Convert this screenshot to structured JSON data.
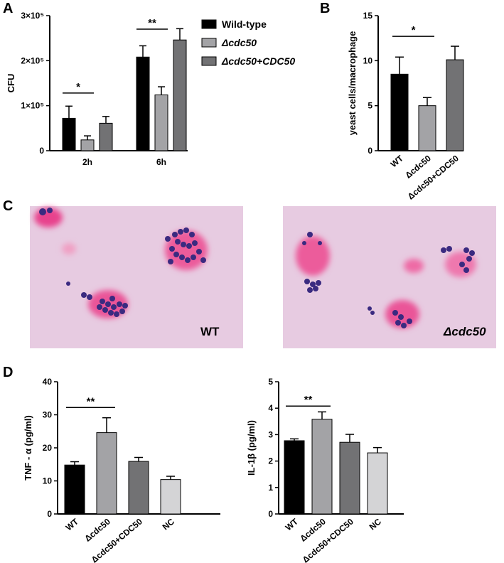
{
  "panels": {
    "A": "A",
    "B": "B",
    "C": "C",
    "D": "D"
  },
  "colors": {
    "wt": "#000000",
    "mut": "#a3a3a6",
    "comp": "#727274",
    "nc": "#d4d4d6",
    "micro_bg": "#e6c9e0",
    "cell": "#e8438d",
    "yeast": "#3a2a80"
  },
  "panelC": {
    "label_wt": "WT",
    "label_mut": "Δcdc50"
  },
  "chart_data": [
    {
      "type": "bar",
      "id": "A",
      "ylabel": "CFU",
      "categories": [
        "2h",
        "6h"
      ],
      "series": [
        {
          "name": "Wild-type",
          "values": [
            72000,
            208000
          ],
          "errors": [
            27000,
            25000
          ]
        },
        {
          "name": "Δcdc50",
          "values": [
            24000,
            124000
          ],
          "errors": [
            9000,
            18000
          ]
        },
        {
          "name": "Δcdc50+CDC50",
          "values": [
            61000,
            246000
          ],
          "errors": [
            15000,
            25000
          ]
        }
      ],
      "ylim": [
        0,
        300000
      ],
      "yticks": [
        0,
        100000,
        200000,
        300000
      ],
      "ytick_labels": [
        "0",
        "1×10⁵",
        "2×10⁵",
        "3×10⁵"
      ],
      "legend": "top-right",
      "significance": [
        {
          "label": "*",
          "category": 0,
          "from": 0,
          "to": 1,
          "y": 128000
        },
        {
          "label": "**",
          "category": 1,
          "from": 0,
          "to": 1,
          "y": 270000
        }
      ]
    },
    {
      "type": "bar",
      "id": "B",
      "ylabel": "yeast cells/macrophage",
      "categories": [
        "WT",
        "Δcdc50",
        "Δcdc50+CDC50"
      ],
      "values": [
        8.5,
        5.0,
        10.1
      ],
      "errors": [
        1.9,
        0.9,
        1.5
      ],
      "ylim": [
        0,
        15
      ],
      "yticks": [
        0,
        5,
        10,
        15
      ],
      "significance": [
        {
          "label": "*",
          "from": 0,
          "to": 1,
          "y": 12.7
        }
      ]
    },
    {
      "type": "bar",
      "id": "D1",
      "ylabel": "TNF - α (pg/ml)",
      "categories": [
        "WT",
        "Δcdc50",
        "Δcdc50+CDC50",
        "NC"
      ],
      "values": [
        14.8,
        24.6,
        15.9,
        10.4
      ],
      "errors": [
        1.0,
        4.5,
        1.2,
        1.0
      ],
      "ylim": [
        0,
        40
      ],
      "yticks": [
        0,
        10,
        20,
        30,
        40
      ],
      "significance": [
        {
          "label": "**",
          "from": 0,
          "to": 1,
          "y": 32.2
        }
      ]
    },
    {
      "type": "bar",
      "id": "D2",
      "ylabel": "IL-1β (pg/ml)",
      "categories": [
        "WT",
        "Δcdc50",
        "Δcdc50+CDC50",
        "NC"
      ],
      "values": [
        2.77,
        3.58,
        2.71,
        2.31
      ],
      "errors": [
        0.07,
        0.28,
        0.3,
        0.2
      ],
      "ylim": [
        0,
        5
      ],
      "yticks": [
        0,
        1,
        2,
        3,
        4,
        5
      ],
      "significance": [
        {
          "label": "**",
          "from": 0,
          "to": 1,
          "y": 4.08
        }
      ]
    }
  ]
}
